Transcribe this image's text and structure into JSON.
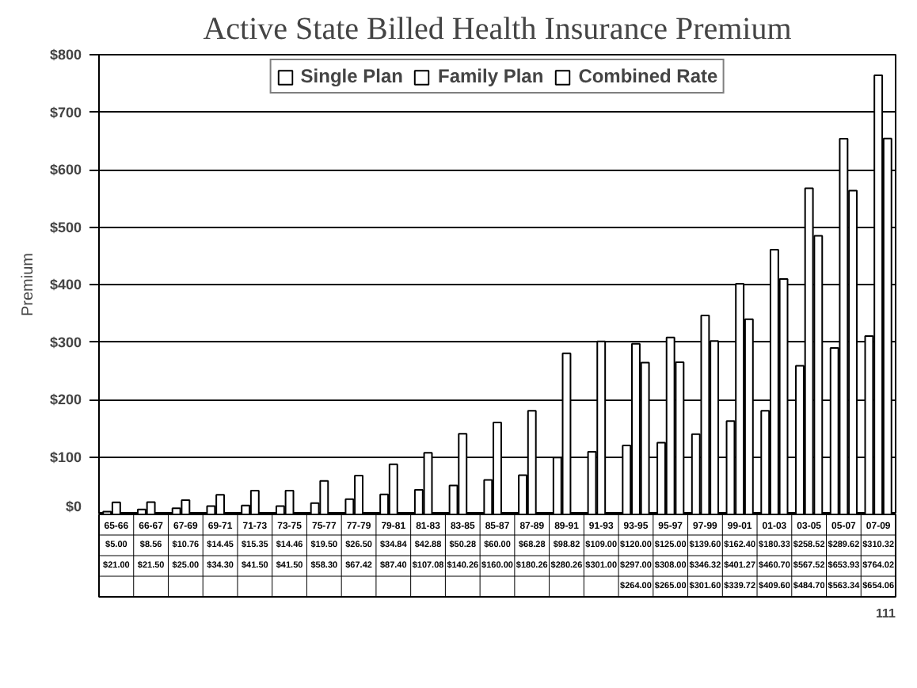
{
  "chart_data": {
    "type": "bar",
    "title": "Active State Billed Health Insurance Premium",
    "ylabel": "Premium",
    "categories": [
      "65-66",
      "66-67",
      "67-69",
      "69-71",
      "71-73",
      "73-75",
      "75-77",
      "77-79",
      "79-81",
      "81-83",
      "83-85",
      "85-87",
      "87-89",
      "89-91",
      "91-93",
      "93-95",
      "95-97",
      "97-99",
      "99-01",
      "01-03",
      "03-05",
      "05-07",
      "07-09"
    ],
    "series": [
      {
        "name": "Single Plan",
        "color": "#ffffff",
        "values": [
          5.0,
          8.56,
          10.76,
          14.45,
          15.35,
          14.46,
          19.5,
          26.5,
          34.84,
          42.88,
          50.28,
          60.0,
          68.28,
          98.82,
          109.0,
          120.0,
          125.0,
          139.6,
          162.4,
          180.33,
          258.52,
          289.62,
          310.32
        ],
        "value_labels": [
          "$5.00",
          "$8.56",
          "$10.76",
          "$14.45",
          "$15.35",
          "$14.46",
          "$19.50",
          "$26.50",
          "$34.84",
          "$42.88",
          "$50.28",
          "$60.00",
          "$68.28",
          "$98.82",
          "$109.00",
          "$120.00",
          "$125.00",
          "$139.60",
          "$162.40",
          "$180.33",
          "$258.52",
          "$289.62",
          "$310.32"
        ]
      },
      {
        "name": "Family Plan",
        "color": "#ffffff",
        "values": [
          21.0,
          21.5,
          25.0,
          34.3,
          41.5,
          41.5,
          58.3,
          67.42,
          87.4,
          107.08,
          140.26,
          160.0,
          180.26,
          280.26,
          301.0,
          297.0,
          308.0,
          346.32,
          401.27,
          460.7,
          567.52,
          653.93,
          764.02
        ],
        "value_labels": [
          "$21.00",
          "$21.50",
          "$25.00",
          "$34.30",
          "$41.50",
          "$41.50",
          "$58.30",
          "$67.42",
          "$87.40",
          "$107.08",
          "$140.26",
          "$160.00",
          "$180.26",
          "$280.26",
          "$301.00",
          "$297.00",
          "$308.00",
          "$346.32",
          "$401.27",
          "$460.70",
          "$567.52",
          "$653.93",
          "$764.02"
        ]
      },
      {
        "name": "Combined Rate",
        "color": "#ffffff",
        "values": [
          null,
          null,
          null,
          null,
          null,
          null,
          null,
          null,
          null,
          null,
          null,
          null,
          null,
          null,
          null,
          264.0,
          265.0,
          301.6,
          339.72,
          409.6,
          484.7,
          563.34,
          654.06
        ],
        "value_labels": [
          null,
          null,
          null,
          null,
          null,
          null,
          null,
          null,
          null,
          null,
          null,
          null,
          null,
          null,
          null,
          "$264.00",
          "$265.00",
          "$301.60",
          "$339.72",
          "$409.60",
          "$484.70",
          "$563.34",
          "$654.06"
        ]
      }
    ],
    "ylim": [
      0,
      800
    ],
    "yticks": [
      {
        "value": 0,
        "label": "$0"
      },
      {
        "value": 100,
        "label": "$100"
      },
      {
        "value": 200,
        "label": "$200"
      },
      {
        "value": 300,
        "label": "$300"
      },
      {
        "value": 400,
        "label": "$400"
      },
      {
        "value": 500,
        "label": "$500"
      },
      {
        "value": 600,
        "label": "$600"
      },
      {
        "value": 700,
        "label": "$700"
      },
      {
        "value": 800,
        "label": "$800"
      }
    ],
    "grid": "y",
    "legend": "top",
    "annotations": [
      "111"
    ]
  }
}
